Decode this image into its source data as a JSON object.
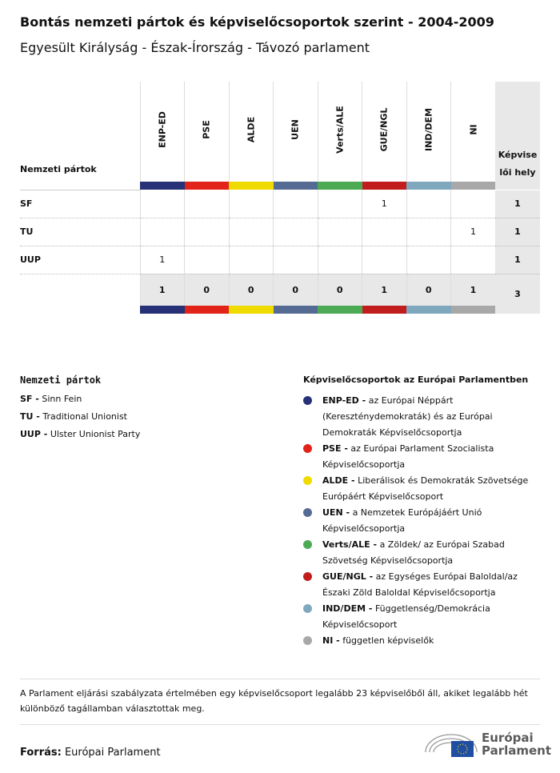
{
  "title": "Bontás nemzeti pártok és képviselőcsoportok szerint - 2004-2009",
  "subtitle": "Egyesült Királyság - Észak-Írország - Távozó parlament",
  "table": {
    "row_header": "Nemzeti pártok",
    "total_header": "Képviselői hely",
    "groups": [
      {
        "name": "ENP-ED",
        "color": "#263178"
      },
      {
        "name": "PSE",
        "color": "#e2231a"
      },
      {
        "name": "ALDE",
        "color": "#f0db00"
      },
      {
        "name": "UEN",
        "color": "#566b94"
      },
      {
        "name": "Verts/ALE",
        "color": "#4caa55"
      },
      {
        "name": "GUE/NGL",
        "color": "#c11d1d"
      },
      {
        "name": "IND/DEM",
        "color": "#7fa8bf"
      },
      {
        "name": "NI",
        "color": "#a8a8a8"
      }
    ],
    "rows": [
      {
        "party": "SF",
        "values": [
          "",
          "",
          "",
          "",
          "",
          "1",
          "",
          ""
        ],
        "total": "1"
      },
      {
        "party": "TU",
        "values": [
          "",
          "",
          "",
          "",
          "",
          "",
          "",
          "1"
        ],
        "total": "1"
      },
      {
        "party": "UUP",
        "values": [
          "1",
          "",
          "",
          "",
          "",
          "",
          "",
          ""
        ],
        "total": "1"
      }
    ],
    "totals": [
      "1",
      "0",
      "0",
      "0",
      "0",
      "1",
      "0",
      "1"
    ],
    "grand_total": "3"
  },
  "national_parties": {
    "heading": "Nemzeti pártok",
    "items": [
      {
        "abbr": "SF -",
        "name": "Sinn Fein"
      },
      {
        "abbr": "TU -",
        "name": "Traditional Unionist"
      },
      {
        "abbr": "UUP -",
        "name": "Ulster Unionist Party"
      }
    ]
  },
  "groups_legend": {
    "heading": "Képviselőcsoportok az Európai Parlamentben",
    "items": [
      {
        "abbr": "ENP-ED -",
        "desc": "az Európai Néppárt (Kereszténydemokraták) és az Európai Demokraták Képviselőcsoportja"
      },
      {
        "abbr": "PSE -",
        "desc": "az Európai Parlament Szocialista Képviselőcsoportja"
      },
      {
        "abbr": "ALDE -",
        "desc": "Liberálisok és Demokraták Szövetsége Európáért Képviselőcsoport"
      },
      {
        "abbr": "UEN -",
        "desc": "a Nemzetek Európájáért Unió Képviselőcsoportja"
      },
      {
        "abbr": "Verts/ALE -",
        "desc": "a Zöldek/ az Európai Szabad Szövetség Képviselőcsoportja"
      },
      {
        "abbr": "GUE/NGL -",
        "desc": "az Egységes Európai Baloldal/az Északi Zöld Baloldal Képviselőcsoportja"
      },
      {
        "abbr": "IND/DEM -",
        "desc": "Függetlenség/Demokrácia Képviselőcsoport"
      },
      {
        "abbr": "NI -",
        "desc": "független képviselők"
      }
    ]
  },
  "note": "A Parlament eljárási szabályzata értelmében egy képviselőcsoport legalább 23 képviselőből áll, akiket legalább hét különböző tagállamban választottak meg.",
  "source_label": "Forrás:",
  "source": "Európai Parlament",
  "logo": "Európai Parlament"
}
